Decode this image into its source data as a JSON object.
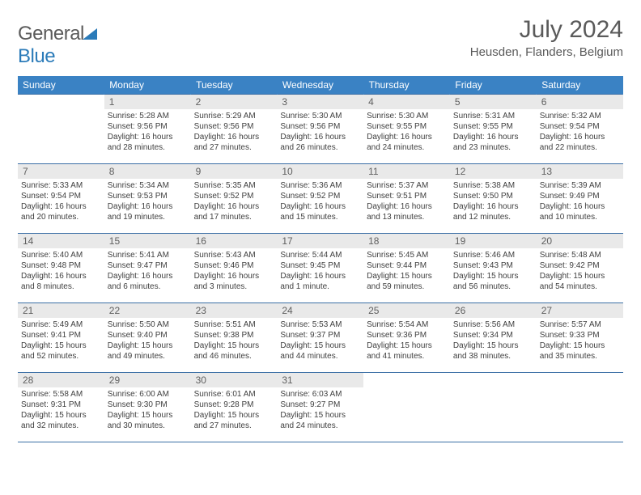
{
  "logo": {
    "word1": "General",
    "word2": "Blue"
  },
  "title": "July 2024",
  "location": "Heusden, Flanders, Belgium",
  "colors": {
    "header_bg": "#3a82c4",
    "row_border": "#3a6ea5",
    "daynum_bg": "#e9e9e9",
    "logo_accent": "#2b7bb9",
    "text": "#404040"
  },
  "weekdays": [
    "Sunday",
    "Monday",
    "Tuesday",
    "Wednesday",
    "Thursday",
    "Friday",
    "Saturday"
  ],
  "first_weekday_index": 1,
  "days": [
    {
      "n": 1,
      "sunrise": "5:28 AM",
      "sunset": "9:56 PM",
      "daylight": "16 hours and 28 minutes."
    },
    {
      "n": 2,
      "sunrise": "5:29 AM",
      "sunset": "9:56 PM",
      "daylight": "16 hours and 27 minutes."
    },
    {
      "n": 3,
      "sunrise": "5:30 AM",
      "sunset": "9:56 PM",
      "daylight": "16 hours and 26 minutes."
    },
    {
      "n": 4,
      "sunrise": "5:30 AM",
      "sunset": "9:55 PM",
      "daylight": "16 hours and 24 minutes."
    },
    {
      "n": 5,
      "sunrise": "5:31 AM",
      "sunset": "9:55 PM",
      "daylight": "16 hours and 23 minutes."
    },
    {
      "n": 6,
      "sunrise": "5:32 AM",
      "sunset": "9:54 PM",
      "daylight": "16 hours and 22 minutes."
    },
    {
      "n": 7,
      "sunrise": "5:33 AM",
      "sunset": "9:54 PM",
      "daylight": "16 hours and 20 minutes."
    },
    {
      "n": 8,
      "sunrise": "5:34 AM",
      "sunset": "9:53 PM",
      "daylight": "16 hours and 19 minutes."
    },
    {
      "n": 9,
      "sunrise": "5:35 AM",
      "sunset": "9:52 PM",
      "daylight": "16 hours and 17 minutes."
    },
    {
      "n": 10,
      "sunrise": "5:36 AM",
      "sunset": "9:52 PM",
      "daylight": "16 hours and 15 minutes."
    },
    {
      "n": 11,
      "sunrise": "5:37 AM",
      "sunset": "9:51 PM",
      "daylight": "16 hours and 13 minutes."
    },
    {
      "n": 12,
      "sunrise": "5:38 AM",
      "sunset": "9:50 PM",
      "daylight": "16 hours and 12 minutes."
    },
    {
      "n": 13,
      "sunrise": "5:39 AM",
      "sunset": "9:49 PM",
      "daylight": "16 hours and 10 minutes."
    },
    {
      "n": 14,
      "sunrise": "5:40 AM",
      "sunset": "9:48 PM",
      "daylight": "16 hours and 8 minutes."
    },
    {
      "n": 15,
      "sunrise": "5:41 AM",
      "sunset": "9:47 PM",
      "daylight": "16 hours and 6 minutes."
    },
    {
      "n": 16,
      "sunrise": "5:43 AM",
      "sunset": "9:46 PM",
      "daylight": "16 hours and 3 minutes."
    },
    {
      "n": 17,
      "sunrise": "5:44 AM",
      "sunset": "9:45 PM",
      "daylight": "16 hours and 1 minute."
    },
    {
      "n": 18,
      "sunrise": "5:45 AM",
      "sunset": "9:44 PM",
      "daylight": "15 hours and 59 minutes."
    },
    {
      "n": 19,
      "sunrise": "5:46 AM",
      "sunset": "9:43 PM",
      "daylight": "15 hours and 56 minutes."
    },
    {
      "n": 20,
      "sunrise": "5:48 AM",
      "sunset": "9:42 PM",
      "daylight": "15 hours and 54 minutes."
    },
    {
      "n": 21,
      "sunrise": "5:49 AM",
      "sunset": "9:41 PM",
      "daylight": "15 hours and 52 minutes."
    },
    {
      "n": 22,
      "sunrise": "5:50 AM",
      "sunset": "9:40 PM",
      "daylight": "15 hours and 49 minutes."
    },
    {
      "n": 23,
      "sunrise": "5:51 AM",
      "sunset": "9:38 PM",
      "daylight": "15 hours and 46 minutes."
    },
    {
      "n": 24,
      "sunrise": "5:53 AM",
      "sunset": "9:37 PM",
      "daylight": "15 hours and 44 minutes."
    },
    {
      "n": 25,
      "sunrise": "5:54 AM",
      "sunset": "9:36 PM",
      "daylight": "15 hours and 41 minutes."
    },
    {
      "n": 26,
      "sunrise": "5:56 AM",
      "sunset": "9:34 PM",
      "daylight": "15 hours and 38 minutes."
    },
    {
      "n": 27,
      "sunrise": "5:57 AM",
      "sunset": "9:33 PM",
      "daylight": "15 hours and 35 minutes."
    },
    {
      "n": 28,
      "sunrise": "5:58 AM",
      "sunset": "9:31 PM",
      "daylight": "15 hours and 32 minutes."
    },
    {
      "n": 29,
      "sunrise": "6:00 AM",
      "sunset": "9:30 PM",
      "daylight": "15 hours and 30 minutes."
    },
    {
      "n": 30,
      "sunrise": "6:01 AM",
      "sunset": "9:28 PM",
      "daylight": "15 hours and 27 minutes."
    },
    {
      "n": 31,
      "sunrise": "6:03 AM",
      "sunset": "9:27 PM",
      "daylight": "15 hours and 24 minutes."
    }
  ],
  "labels": {
    "sunrise": "Sunrise:",
    "sunset": "Sunset:",
    "daylight": "Daylight:"
  }
}
